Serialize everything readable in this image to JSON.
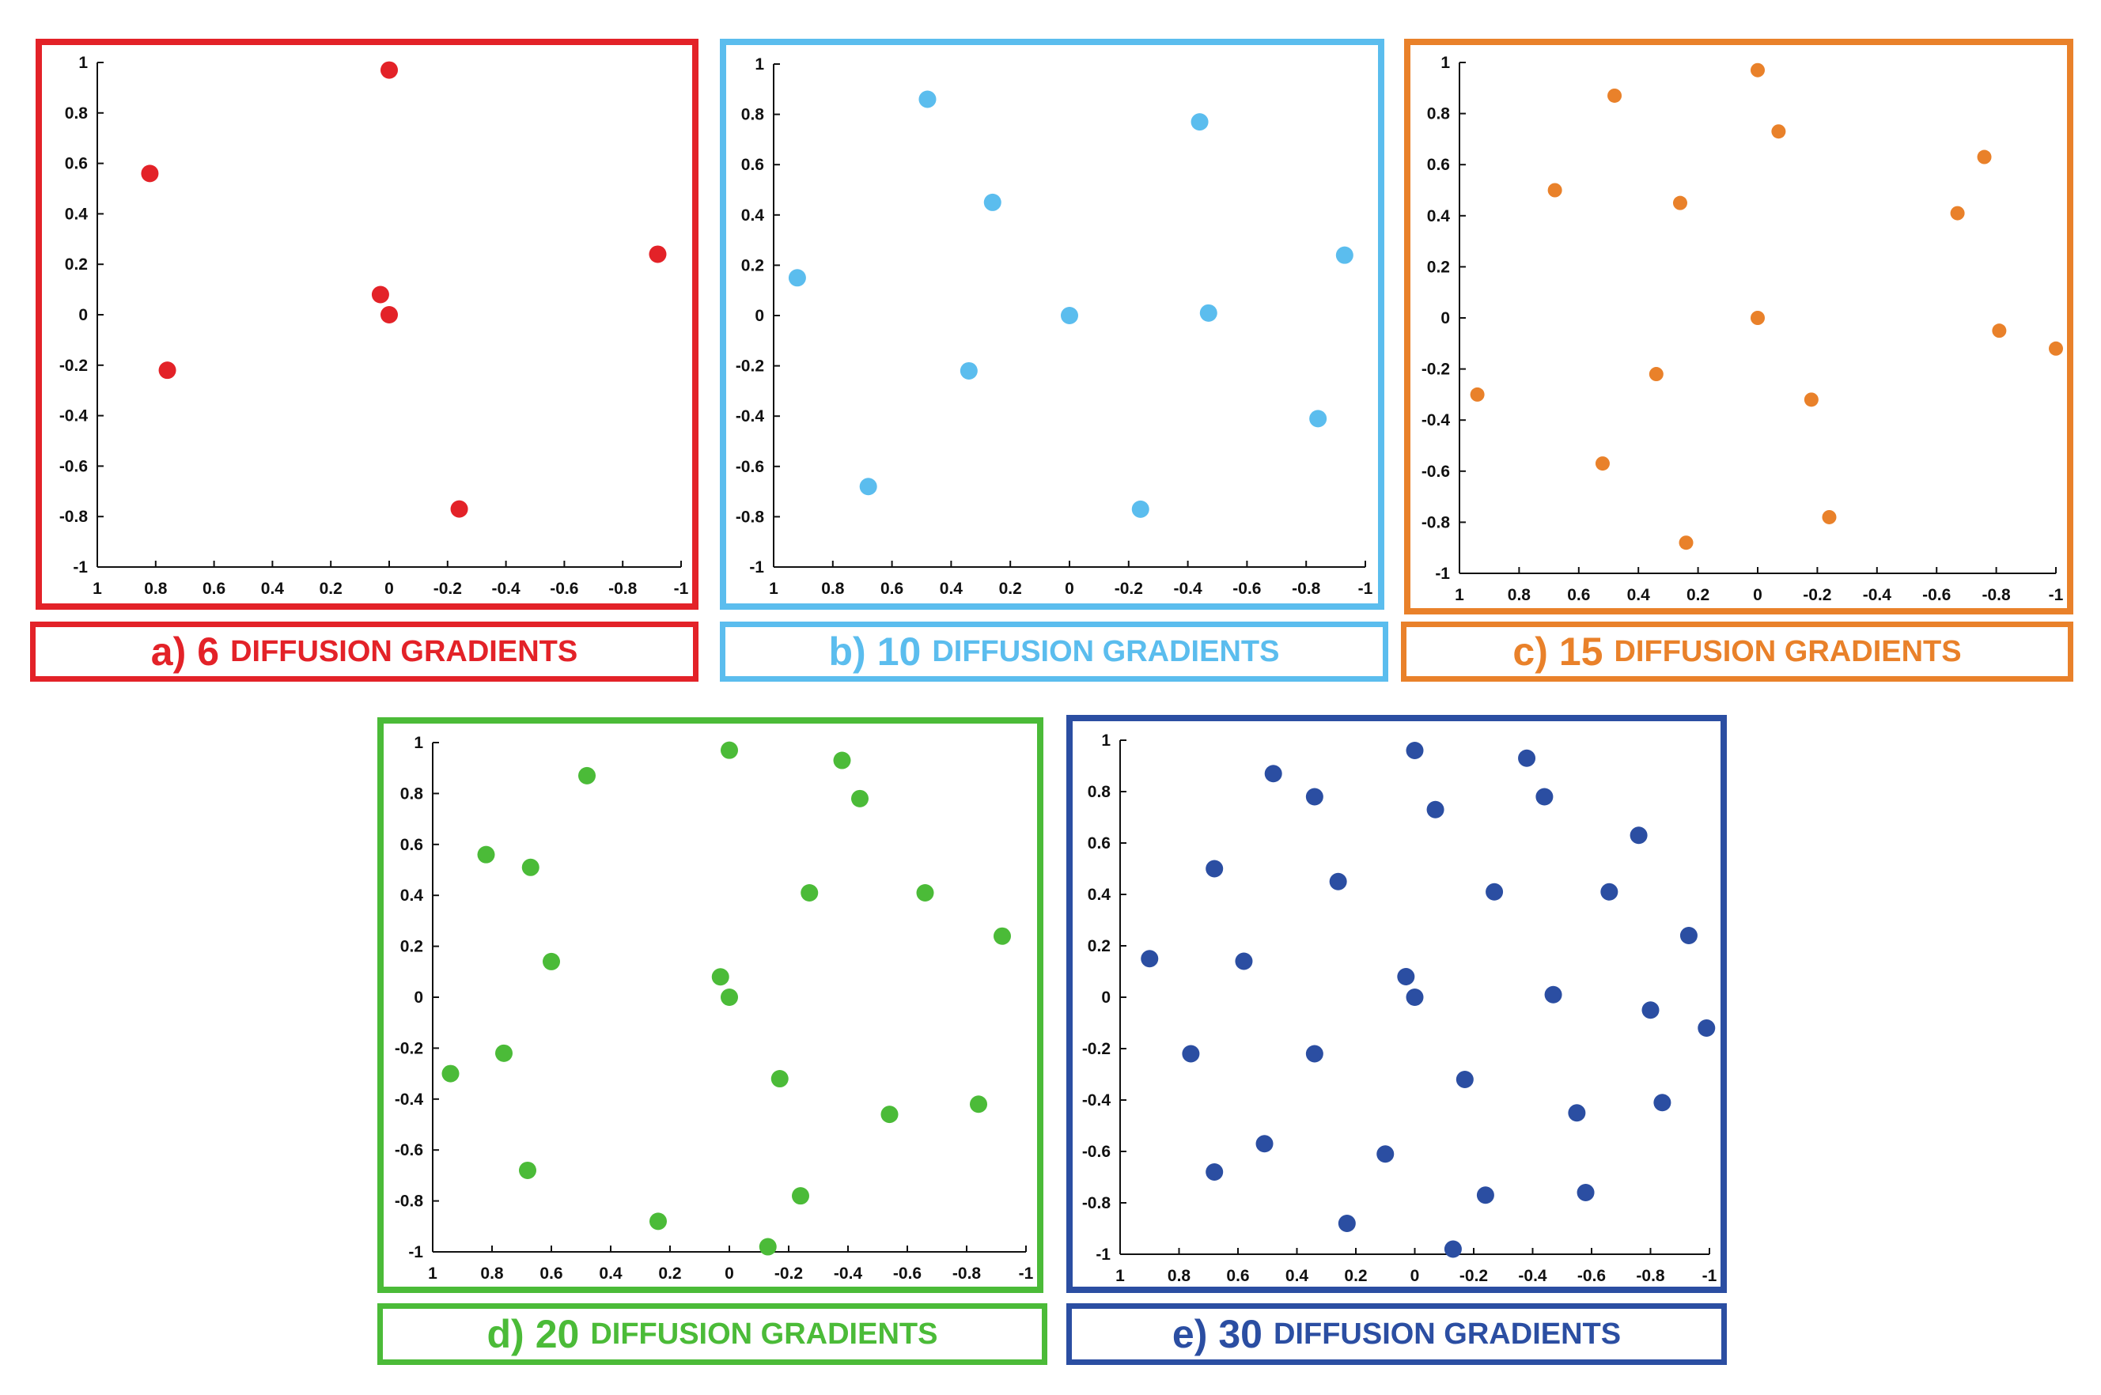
{
  "figure": {
    "caption_suffix": "DIFFUSION GRADIENTS"
  },
  "chart_data": [
    {
      "type": "scatter",
      "id": "a",
      "letter": "a)",
      "count": "6",
      "caption": "a) 6 DIFFUSION GRADIENTS",
      "color": "#e32228",
      "xlim": [
        1,
        -1
      ],
      "ylim": [
        -1,
        1
      ],
      "xticks": [
        "1",
        "0.8",
        "0.6",
        "0.4",
        "0.2",
        "0",
        "-0.2",
        "-0.4",
        "-0.6",
        "-0.8",
        "-1"
      ],
      "yticks": [
        "1",
        "0.8",
        "0.6",
        "0.4",
        "0.2",
        "0",
        "-0.2",
        "-0.4",
        "-0.6",
        "-0.8",
        "-1"
      ],
      "grid": false,
      "points": [
        [
          0.0,
          0.97
        ],
        [
          0.82,
          0.56
        ],
        [
          -0.92,
          0.24
        ],
        [
          0.03,
          0.08
        ],
        [
          0.0,
          0.0
        ],
        [
          0.76,
          -0.22
        ],
        [
          -0.24,
          -0.77
        ]
      ]
    },
    {
      "type": "scatter",
      "id": "b",
      "letter": "b)",
      "count": "10",
      "caption": "b) 10 DIFFUSION GRADIENTS",
      "color": "#5bbdee",
      "xlim": [
        1,
        -1
      ],
      "ylim": [
        -1,
        1
      ],
      "xticks": [
        "1",
        "0.8",
        "0.6",
        "0.4",
        "0.2",
        "0",
        "-0.2",
        "-0.4",
        "-0.6",
        "-0.8",
        "-1"
      ],
      "yticks": [
        "1",
        "0.8",
        "0.6",
        "0.4",
        "0.2",
        "0",
        "-0.2",
        "-0.4",
        "-0.6",
        "-0.8",
        "-1"
      ],
      "grid": false,
      "points": [
        [
          0.48,
          0.86
        ],
        [
          -0.44,
          0.77
        ],
        [
          0.26,
          0.45
        ],
        [
          0.92,
          0.15
        ],
        [
          -0.93,
          0.24
        ],
        [
          0.0,
          0.0
        ],
        [
          -0.47,
          0.01
        ],
        [
          0.34,
          -0.22
        ],
        [
          -0.84,
          -0.41
        ],
        [
          0.68,
          -0.68
        ],
        [
          -0.24,
          -0.77
        ]
      ]
    },
    {
      "type": "scatter",
      "id": "c",
      "letter": "c)",
      "count": "15",
      "caption": "c) 15 DIFFUSION GRADIENTS",
      "color": "#e9812a",
      "xlim": [
        1,
        -1
      ],
      "ylim": [
        -1,
        1
      ],
      "xticks": [
        "1",
        "0.8",
        "0.6",
        "0.4",
        "0.2",
        "0",
        "-0.2",
        "-0.4",
        "-0.6",
        "-0.8",
        "-1"
      ],
      "yticks": [
        "1",
        "0.8",
        "0.6",
        "0.4",
        "0.2",
        "0",
        "-0.2",
        "-0.4",
        "-0.6",
        "-0.8",
        "-1"
      ],
      "grid": false,
      "points": [
        [
          0.0,
          0.97
        ],
        [
          0.48,
          0.87
        ],
        [
          -0.07,
          0.73
        ],
        [
          -0.76,
          0.63
        ],
        [
          0.68,
          0.5
        ],
        [
          0.26,
          0.45
        ],
        [
          -0.67,
          0.41
        ],
        [
          0.0,
          0.0
        ],
        [
          -0.81,
          -0.05
        ],
        [
          -1.0,
          -0.12
        ],
        [
          0.94,
          -0.3
        ],
        [
          0.34,
          -0.22
        ],
        [
          -0.18,
          -0.32
        ],
        [
          0.52,
          -0.57
        ],
        [
          -0.24,
          -0.78
        ],
        [
          0.24,
          -0.88
        ]
      ]
    },
    {
      "type": "scatter",
      "id": "d",
      "letter": "d)",
      "count": "20",
      "caption": "d) 20 DIFFUSION GRADIENTS",
      "color": "#4bbb38",
      "xlim": [
        1,
        -1
      ],
      "ylim": [
        -1,
        1
      ],
      "xticks": [
        "1",
        "0.8",
        "0.6",
        "0.4",
        "0.2",
        "0",
        "-0.2",
        "-0.4",
        "-0.6",
        "-0.8",
        "-1"
      ],
      "yticks": [
        "1",
        "0.8",
        "0.6",
        "0.4",
        "0.2",
        "0",
        "-0.2",
        "-0.4",
        "-0.6",
        "-0.8",
        "-1"
      ],
      "grid": false,
      "points": [
        [
          0.0,
          0.97
        ],
        [
          -0.38,
          0.93
        ],
        [
          0.48,
          0.87
        ],
        [
          -0.44,
          0.78
        ],
        [
          0.82,
          0.56
        ],
        [
          0.67,
          0.51
        ],
        [
          -0.27,
          0.41
        ],
        [
          -0.66,
          0.41
        ],
        [
          -0.92,
          0.24
        ],
        [
          0.6,
          0.14
        ],
        [
          0.03,
          0.08
        ],
        [
          0.0,
          0.0
        ],
        [
          0.94,
          -0.3
        ],
        [
          0.76,
          -0.22
        ],
        [
          -0.17,
          -0.32
        ],
        [
          -0.54,
          -0.46
        ],
        [
          -0.84,
          -0.42
        ],
        [
          0.68,
          -0.68
        ],
        [
          -0.24,
          -0.78
        ],
        [
          0.24,
          -0.88
        ],
        [
          -0.13,
          -0.98
        ]
      ]
    },
    {
      "type": "scatter",
      "id": "e",
      "letter": "e)",
      "count": "30",
      "caption": "e) 30 DIFFUSION GRADIENTS",
      "color": "#2b4ea2",
      "xlim": [
        1,
        -1
      ],
      "ylim": [
        -1,
        1
      ],
      "xticks": [
        "1",
        "0.8",
        "0.6",
        "0.4",
        "0.2",
        "0",
        "-0.2",
        "-0.4",
        "-0.6",
        "-0.8",
        "-1"
      ],
      "yticks": [
        "1",
        "0.8",
        "0.6",
        "0.4",
        "0.2",
        "0",
        "-0.2",
        "-0.4",
        "-0.6",
        "-0.8",
        "-1"
      ],
      "grid": false,
      "points": [
        [
          0.0,
          0.96
        ],
        [
          -0.38,
          0.93
        ],
        [
          0.48,
          0.87
        ],
        [
          0.34,
          0.78
        ],
        [
          -0.44,
          0.78
        ],
        [
          -0.07,
          0.73
        ],
        [
          -0.76,
          0.63
        ],
        [
          0.68,
          0.5
        ],
        [
          0.26,
          0.45
        ],
        [
          -0.27,
          0.41
        ],
        [
          -0.66,
          0.41
        ],
        [
          -0.93,
          0.24
        ],
        [
          0.9,
          0.15
        ],
        [
          0.58,
          0.14
        ],
        [
          0.03,
          0.08
        ],
        [
          0.0,
          0.0
        ],
        [
          -0.47,
          0.01
        ],
        [
          -0.8,
          -0.05
        ],
        [
          -0.99,
          -0.12
        ],
        [
          0.76,
          -0.22
        ],
        [
          0.34,
          -0.22
        ],
        [
          -0.17,
          -0.32
        ],
        [
          -0.84,
          -0.41
        ],
        [
          -0.55,
          -0.45
        ],
        [
          0.51,
          -0.57
        ],
        [
          0.1,
          -0.61
        ],
        [
          0.68,
          -0.68
        ],
        [
          -0.24,
          -0.77
        ],
        [
          -0.58,
          -0.76
        ],
        [
          0.23,
          -0.88
        ],
        [
          -0.13,
          -0.98
        ]
      ]
    }
  ]
}
